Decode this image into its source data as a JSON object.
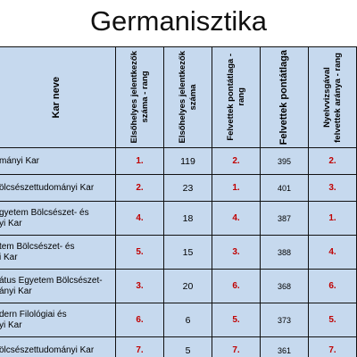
{
  "title": "Germanisztika",
  "table": {
    "headers": {
      "kar": "Kar neve",
      "h1": "Elsőhelyes jelentkezők\nszáma - rang",
      "h2": "Elsőhelyes jelentkezők\nszáma",
      "h3": "Felvettek pontátlaga -\nrang",
      "h4": "Felvettek pontátlaga",
      "h5": "Nyelvvizsgával\nfelvettek aránya - rang"
    },
    "rows": [
      {
        "name": "mányi Kar",
        "r1": "1.",
        "v1": "119",
        "r2": "2.",
        "v2": "395",
        "r3": "2."
      },
      {
        "name": "ölcsészettudományi Kar",
        "r1": "2.",
        "v1": "23",
        "r2": "1.",
        "v2": "401",
        "r3": "3."
      },
      {
        "name": "gyetem Bölcsészet- és\nyi Kar",
        "r1": "4.",
        "v1": "18",
        "r2": "4.",
        "v2": "387",
        "r3": "1."
      },
      {
        "name": "tem Bölcsészet- és\ni Kar",
        "r1": "5.",
        "v1": "15",
        "r2": "3.",
        "v2": "388",
        "r3": "4."
      },
      {
        "name": "átus Egyetem Bölcsészet-\nányi Kar",
        "r1": "3.",
        "v1": "20",
        "r2": "6.",
        "v2": "368",
        "r3": "6."
      },
      {
        "name": "dern Filológiai és\nyi Kar",
        "r1": "6.",
        "v1": "6",
        "r2": "5.",
        "v2": "373",
        "r3": "5."
      },
      {
        "name": "ölcsészettudományi Kar",
        "r1": "7.",
        "v1": "5",
        "r2": "7.",
        "v2": "361",
        "r3": "7."
      }
    ]
  }
}
